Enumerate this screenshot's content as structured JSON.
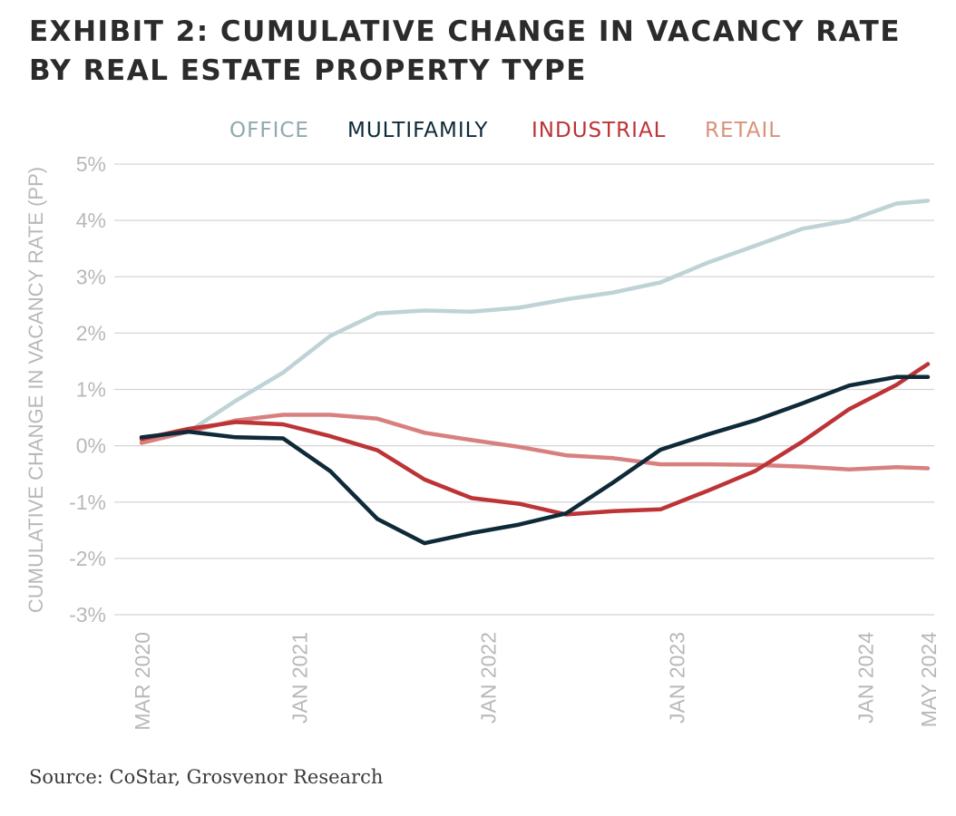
{
  "title_line1": "EXHIBIT 2: CUMULATIVE CHANGE IN VACANCY RATE",
  "title_line2": "BY REAL ESTATE PROPERTY TYPE",
  "source": "Source: CoStar, Grosvenor Research",
  "chart_data": {
    "type": "line",
    "ylabel": "CUMULATIVE CHANGE IN VACANCY RATE (PP)",
    "ylim": [
      -3,
      5
    ],
    "y_ticks": [
      "5%",
      "4%",
      "3%",
      "2%",
      "1%",
      "0%",
      "-1%",
      "-2%",
      "-3%"
    ],
    "x_ticks": [
      "MAR 2020",
      "JAN 2021",
      "JAN 2022",
      "JAN 2023",
      "JAN 2024",
      "MAY 2024"
    ],
    "x_tick_positions": [
      "2020-03",
      "2021-01",
      "2022-01",
      "2023-01",
      "2024-01",
      "2024-05"
    ],
    "x": [
      "2020-03",
      "2020-06",
      "2020-09",
      "2020-12",
      "2021-03",
      "2021-06",
      "2021-09",
      "2021-12",
      "2022-03",
      "2022-06",
      "2022-09",
      "2022-12",
      "2023-03",
      "2023-06",
      "2023-09",
      "2023-12",
      "2024-03",
      "2024-05"
    ],
    "grid": true,
    "legend_position": "top",
    "series": [
      {
        "name": "OFFICE",
        "color": "#bfd3d6",
        "values": [
          0.1,
          0.25,
          0.8,
          1.3,
          1.95,
          2.35,
          2.4,
          2.38,
          2.45,
          2.6,
          2.72,
          2.9,
          3.25,
          3.55,
          3.85,
          4.0,
          4.3,
          4.35
        ]
      },
      {
        "name": "MULTIFAMILY",
        "color": "#0e2a38",
        "values": [
          0.15,
          0.25,
          0.15,
          0.13,
          -0.45,
          -1.3,
          -1.73,
          -1.55,
          -1.4,
          -1.2,
          -0.65,
          -0.07,
          0.2,
          0.45,
          0.75,
          1.07,
          1.22,
          1.22
        ]
      },
      {
        "name": "INDUSTRIAL",
        "color": "#bc3436",
        "values": [
          0.12,
          0.3,
          0.42,
          0.38,
          0.17,
          -0.08,
          -0.6,
          -0.93,
          -1.03,
          -1.22,
          -1.16,
          -1.13,
          -0.8,
          -0.45,
          0.07,
          0.65,
          1.08,
          1.45
        ]
      },
      {
        "name": "RETAIL",
        "color": "#d88080",
        "values": [
          0.05,
          0.25,
          0.45,
          0.55,
          0.55,
          0.48,
          0.23,
          0.1,
          -0.02,
          -0.17,
          -0.22,
          -0.33,
          -0.33,
          -0.34,
          -0.37,
          -0.42,
          -0.38,
          -0.4
        ]
      }
    ],
    "legend_colors": {
      "OFFICE": "#8fa9ad",
      "MULTIFAMILY": "#0e2a38",
      "INDUSTRIAL": "#bc3436",
      "RETAIL": "#d9927a"
    }
  }
}
